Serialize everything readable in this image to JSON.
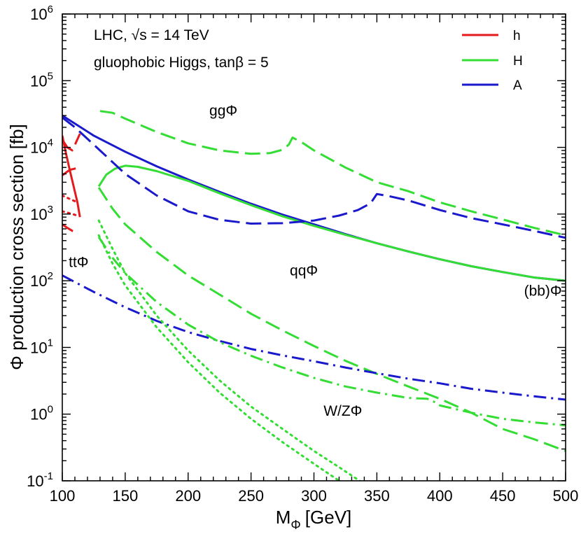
{
  "chart_data": {
    "type": "line",
    "xlabel_main": "M",
    "xlabel_sub": "Φ",
    "xlabel_unit": "[GeV]",
    "ylabel": "Φ production cross section [fb]",
    "xlim": [
      100,
      500
    ],
    "ylim": [
      0.1,
      1000000
    ],
    "yscale": "log",
    "x_ticks": [
      100,
      150,
      200,
      250,
      300,
      350,
      400,
      450,
      500
    ],
    "y_ticks": [
      {
        "base": "10",
        "exp": "-1",
        "value": 0.1
      },
      {
        "base": "10",
        "exp": "0",
        "value": 1
      },
      {
        "base": "10",
        "exp": "1",
        "value": 10
      },
      {
        "base": "10",
        "exp": "2",
        "value": 100
      },
      {
        "base": "10",
        "exp": "3",
        "value": 1000
      },
      {
        "base": "10",
        "exp": "4",
        "value": 10000
      },
      {
        "base": "10",
        "exp": "5",
        "value": 100000
      },
      {
        "base": "10",
        "exp": "6",
        "value": 1000000
      }
    ],
    "header_line1": "LHC, √s = 14 TeV",
    "header_line2": "gluophobic Higgs, tanβ = 5",
    "legend": [
      {
        "label": "h",
        "color": "#e41a1c"
      },
      {
        "label": "H",
        "color": "#33dd33"
      },
      {
        "label": "A",
        "color": "#1a1acc"
      }
    ],
    "legend_position": "top-right",
    "annotations": [
      {
        "text": "ggΦ",
        "x": 228,
        "y": 30000
      },
      {
        "text": "qqΦ",
        "x": 292,
        "y": 120
      },
      {
        "text": "ttΦ",
        "x": 113,
        "y": 160
      },
      {
        "text": "(bb)Φ",
        "x": 482,
        "y": 60
      },
      {
        "text": "W/ZΦ",
        "x": 323,
        "y": 0.95
      }
    ],
    "series": [
      {
        "name": "h",
        "process": "(bb)Φ",
        "style": "solid",
        "color": "#e41a1c",
        "x": [
          100,
          103,
          106,
          109,
          112,
          114
        ],
        "y": [
          15000,
          8000,
          4500,
          2600,
          1500,
          900
        ]
      },
      {
        "name": "h",
        "process": "ggΦ",
        "style": "dashed",
        "color": "#e41a1c",
        "x": [
          100,
          104,
          108,
          111,
          114
        ],
        "y": [
          13000,
          10000,
          9000,
          12000,
          16000
        ]
      },
      {
        "name": "h",
        "process": "qqΦ",
        "style": "dashed",
        "color": "#e41a1c",
        "x": [
          100,
          103,
          106,
          110,
          114
        ],
        "y": [
          3800,
          4200,
          4600,
          4800,
          4900
        ]
      },
      {
        "name": "h",
        "process": "ttΦ",
        "style": "dashdot",
        "color": "#e41a1c",
        "x": [
          100,
          104,
          108,
          112
        ],
        "y": [
          700,
          620,
          560,
          520
        ]
      },
      {
        "name": "h",
        "process": "W/ZΦ",
        "style": "dotted",
        "color": "#e41a1c",
        "x": [
          100,
          104,
          108,
          112
        ],
        "y": [
          1900,
          1750,
          1620,
          1500
        ]
      },
      {
        "name": "h",
        "process": "W/ZΦ",
        "style": "dotted",
        "color": "#e41a1c",
        "x": [
          100,
          104,
          108,
          112
        ],
        "y": [
          1100,
          1050,
          1000,
          950
        ]
      },
      {
        "name": "A",
        "process": "(bb)Φ",
        "style": "solid",
        "color": "#1a1acc",
        "x": [
          100,
          125,
          150,
          175,
          200,
          225,
          250,
          275,
          300,
          325,
          350,
          375,
          400,
          425,
          450,
          475,
          500
        ],
        "y": [
          30000,
          15000,
          8600,
          5200,
          3300,
          2150,
          1430,
          980,
          700,
          500,
          365,
          275,
          210,
          165,
          135,
          112,
          100
        ]
      },
      {
        "name": "H",
        "process": "(bb)Φ",
        "style": "solid",
        "color": "#33dd33",
        "x": [
          129,
          135,
          142,
          150,
          160,
          175,
          200,
          225,
          250,
          275,
          300,
          325,
          350,
          375,
          400,
          425,
          450,
          475,
          500
        ],
        "y": [
          2600,
          3900,
          4800,
          5300,
          5100,
          4400,
          3150,
          2050,
          1360,
          925,
          665,
          490,
          365,
          275,
          210,
          165,
          135,
          112,
          100
        ]
      },
      {
        "name": "H",
        "process": "ggΦ",
        "style": "dashed",
        "color": "#33dd33",
        "x": [
          130,
          140,
          150,
          175,
          200,
          225,
          250,
          265,
          275,
          280,
          283,
          290,
          300,
          325,
          350,
          375,
          400,
          425,
          450,
          475,
          500
        ],
        "y": [
          35000,
          33000,
          27000,
          17000,
          11500,
          9000,
          8000,
          8200,
          9200,
          11000,
          14000,
          12000,
          9000,
          5000,
          3000,
          2200,
          1500,
          1100,
          830,
          620,
          480
        ]
      },
      {
        "name": "A",
        "process": "ggΦ",
        "style": "dashed",
        "color": "#1a1acc",
        "x": [
          100,
          110,
          125,
          150,
          175,
          200,
          225,
          250,
          275,
          300,
          320,
          335,
          345,
          350,
          360,
          375,
          400,
          425,
          450,
          475,
          500
        ],
        "y": [
          28000,
          20000,
          11000,
          4000,
          1900,
          1100,
          820,
          720,
          730,
          800,
          950,
          1150,
          1450,
          2000,
          1850,
          1600,
          1150,
          870,
          700,
          560,
          440
        ]
      },
      {
        "name": "H",
        "process": "qqΦ",
        "style": "dashed",
        "color": "#33dd33",
        "x": [
          129,
          140,
          150,
          175,
          200,
          225,
          250,
          275,
          300,
          325,
          350,
          375,
          400,
          425,
          450,
          475,
          500
        ],
        "y": [
          2500,
          1200,
          700,
          270,
          120,
          62,
          32,
          18,
          10.5,
          6.3,
          4.0,
          2.6,
          1.7,
          1.05,
          0.6,
          0.42,
          0.28
        ]
      },
      {
        "name": "A",
        "process": "ttΦ",
        "style": "dashdot",
        "color": "#1a1acc",
        "x": [
          100,
          125,
          150,
          175,
          200,
          225,
          250,
          275,
          300,
          325,
          350,
          375,
          400,
          425,
          450,
          475,
          500
        ],
        "y": [
          120,
          68,
          40,
          25,
          17,
          12.5,
          9.5,
          7.6,
          6.2,
          5.0,
          4.1,
          3.4,
          2.9,
          2.4,
          2.1,
          1.85,
          1.65
        ]
      },
      {
        "name": "H",
        "process": "ttΦ",
        "style": "dashdot",
        "color": "#33dd33",
        "x": [
          129,
          140,
          150,
          175,
          200,
          225,
          250,
          275,
          300,
          325,
          350,
          375,
          390,
          395,
          400,
          425,
          450,
          475,
          500
        ],
        "y": [
          450,
          220,
          130,
          48,
          22,
          12,
          7.5,
          5.0,
          3.5,
          2.6,
          2.1,
          1.75,
          1.7,
          1.55,
          1.35,
          1.05,
          0.85,
          0.75,
          0.68
        ]
      },
      {
        "name": "H",
        "process": "W/ZΦ",
        "style": "dotted",
        "color": "#33dd33",
        "x": [
          129,
          140,
          150,
          175,
          200,
          225,
          250,
          275,
          300,
          320,
          340
        ],
        "y": [
          800,
          300,
          130,
          30,
          9,
          3.2,
          1.3,
          0.6,
          0.28,
          0.16,
          0.09
        ]
      },
      {
        "name": "H",
        "process": "W/ZΦ",
        "style": "dotted",
        "color": "#33dd33",
        "x": [
          129,
          140,
          150,
          175,
          200,
          225,
          250,
          275,
          300,
          320
        ],
        "y": [
          480,
          180,
          85,
          20,
          6,
          2.1,
          0.85,
          0.38,
          0.18,
          0.1
        ]
      }
    ]
  }
}
